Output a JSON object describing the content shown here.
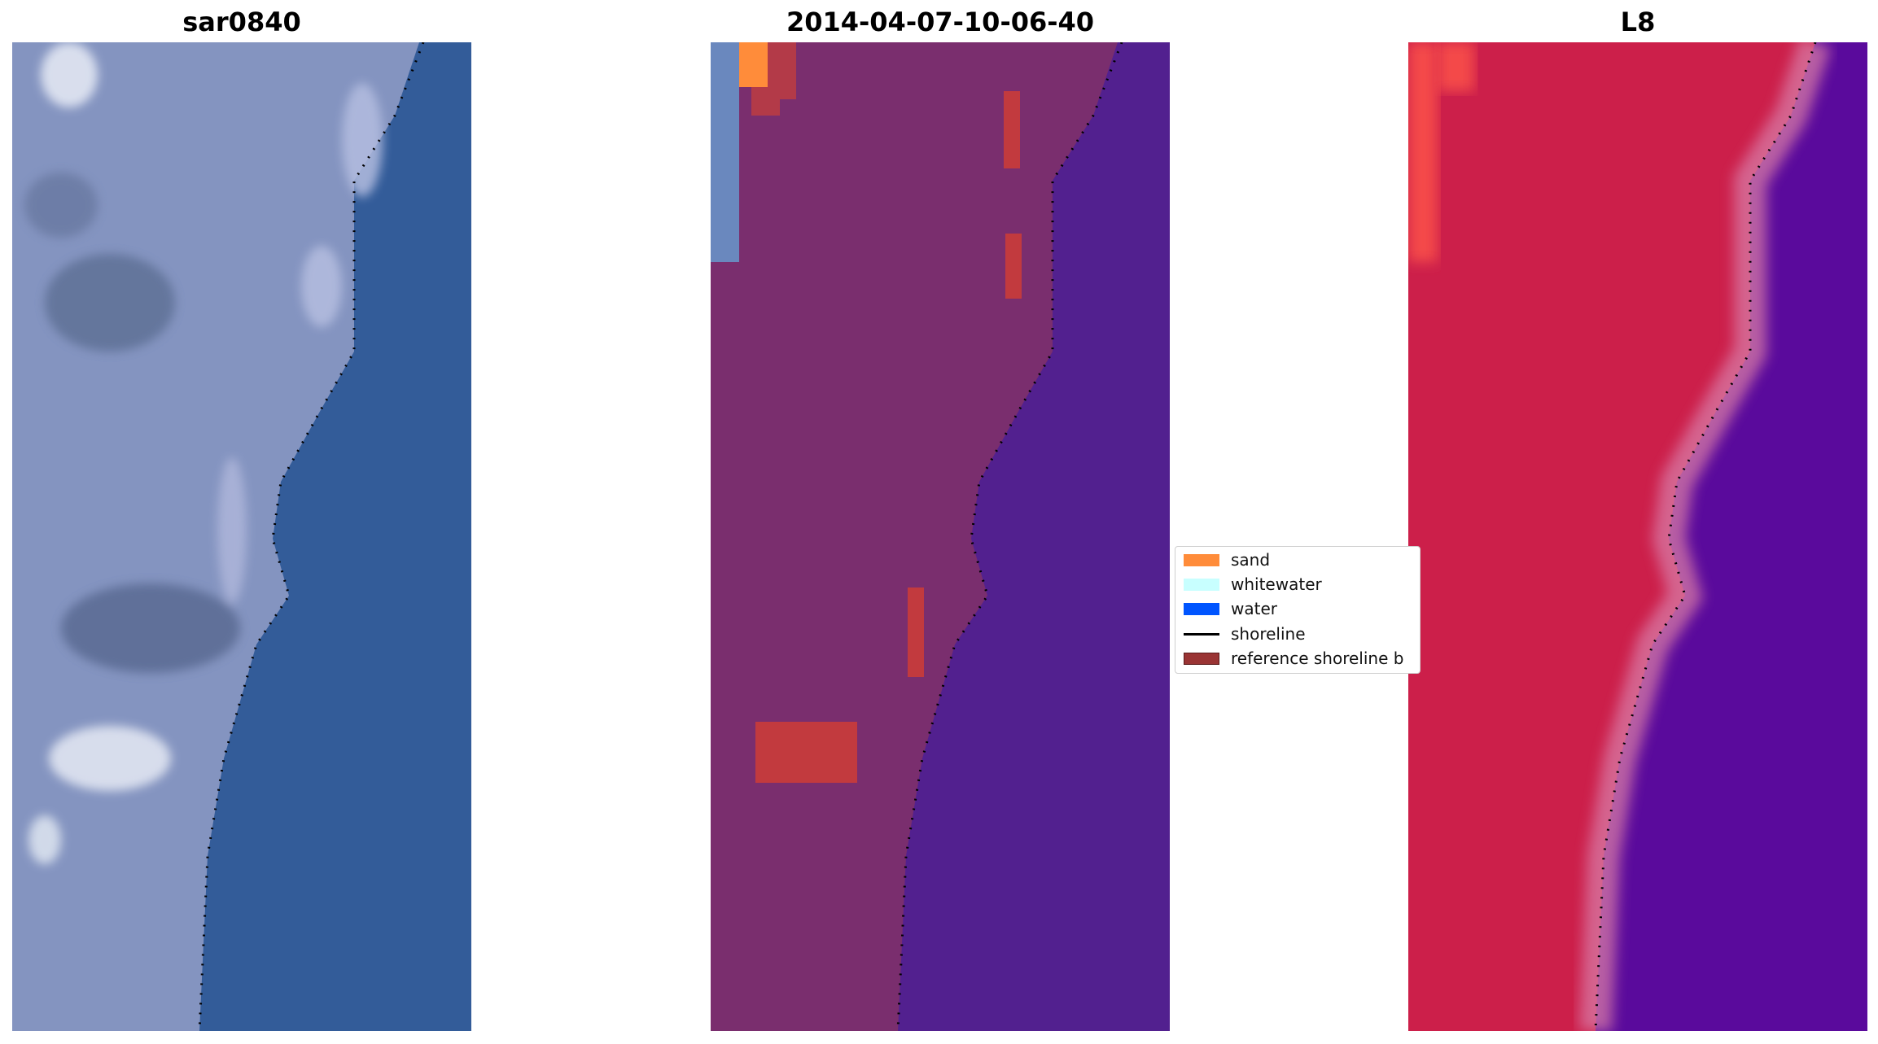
{
  "panels": [
    {
      "title": "sar0840"
    },
    {
      "title": "2014-04-07-10-06-40"
    },
    {
      "title": "L8"
    }
  ],
  "legend": {
    "items": [
      {
        "label": "sand",
        "color": "#ff8c3a"
      },
      {
        "label": "whitewater",
        "color": "#c8ffff"
      },
      {
        "label": "water",
        "color": "#0055ff"
      },
      {
        "label": "shoreline",
        "color": "#000000"
      },
      {
        "label": "reference shoreline b",
        "color": "#9a3434"
      }
    ]
  },
  "colors": {
    "rgb_land": "#8494c0",
    "rgb_water": "#335c99",
    "classified_land": "#7a2e6e",
    "classified_water": "#52208f",
    "nir_land": "#cc1f4a",
    "nir_water": "#5a0a9c"
  }
}
